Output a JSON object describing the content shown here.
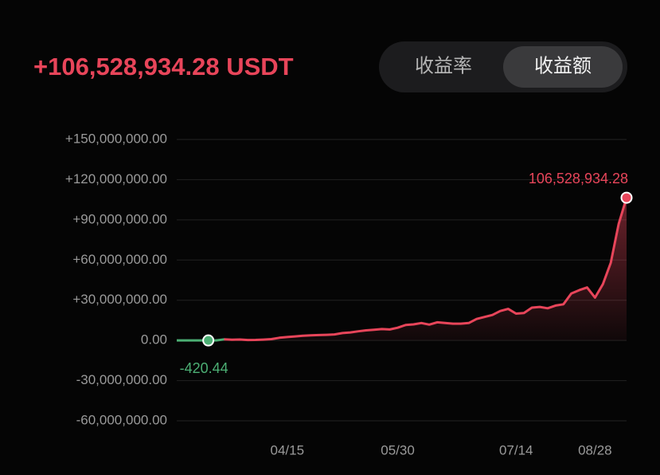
{
  "chart_data": {
    "type": "line",
    "title": "+106,528,934.28 USDT",
    "tabs": [
      "收益率",
      "收益额"
    ],
    "active_tab": 1,
    "categories": [
      null,
      null,
      null,
      null,
      null,
      null,
      null,
      null,
      null,
      null,
      null,
      null,
      null,
      null,
      "04/15",
      null,
      null,
      null,
      null,
      null,
      null,
      null,
      null,
      null,
      null,
      null,
      null,
      null,
      "05/30",
      null,
      null,
      null,
      null,
      null,
      null,
      null,
      null,
      null,
      null,
      null,
      null,
      null,
      null,
      "07/14",
      null,
      null,
      null,
      null,
      null,
      null,
      null,
      null,
      null,
      "08/28",
      null,
      null,
      null,
      null
    ],
    "series": [
      {
        "color": "#e8455a",
        "negative_color": "#4caf74",
        "values": [
          0,
          0,
          0,
          0,
          -420.44,
          0,
          800000,
          500000,
          700000,
          300000,
          400000,
          600000,
          1000000,
          2000000,
          2500000,
          3000000,
          3500000,
          3800000,
          4000000,
          4200000,
          4500000,
          5500000,
          6000000,
          6800000,
          7500000,
          8000000,
          8500000,
          8200000,
          9500000,
          11500000,
          12000000,
          13000000,
          11800000,
          13500000,
          13000000,
          12500000,
          12500000,
          13000000,
          16000000,
          17500000,
          19000000,
          22000000,
          23500000,
          20000000,
          20500000,
          24500000,
          25000000,
          24000000,
          26000000,
          27000000,
          35000000,
          37500000,
          39500000,
          32000000,
          42000000,
          58000000,
          87000000,
          106528934.28
        ],
        "value_labels": [
          null,
          null,
          null,
          null,
          "-420.44",
          null,
          null,
          null,
          null,
          null,
          null,
          null,
          null,
          null,
          null,
          null,
          null,
          null,
          null,
          null,
          null,
          null,
          null,
          null,
          null,
          null,
          null,
          null,
          null,
          null,
          null,
          null,
          null,
          null,
          null,
          null,
          null,
          null,
          null,
          null,
          null,
          null,
          null,
          null,
          null,
          null,
          null,
          null,
          null,
          null,
          null,
          null,
          null,
          null,
          null,
          null,
          null,
          "106,528,934.28"
        ]
      }
    ],
    "ylim": [
      -70000000,
      160000000
    ],
    "yticks": [
      {
        "value": -60000000,
        "label": "-60,000,000.00"
      },
      {
        "value": -30000000,
        "label": "-30,000,000.00"
      },
      {
        "value": 0,
        "label": "0.00"
      },
      {
        "value": 30000000,
        "label": "+30,000,000.00"
      },
      {
        "value": 60000000,
        "label": "+60,000,000.00"
      },
      {
        "value": 90000000,
        "label": "+90,000,000.00"
      },
      {
        "value": 120000000,
        "label": "+120,000,000.00"
      },
      {
        "value": 150000000,
        "label": "+150,000,000.00"
      }
    ],
    "grid": true
  }
}
